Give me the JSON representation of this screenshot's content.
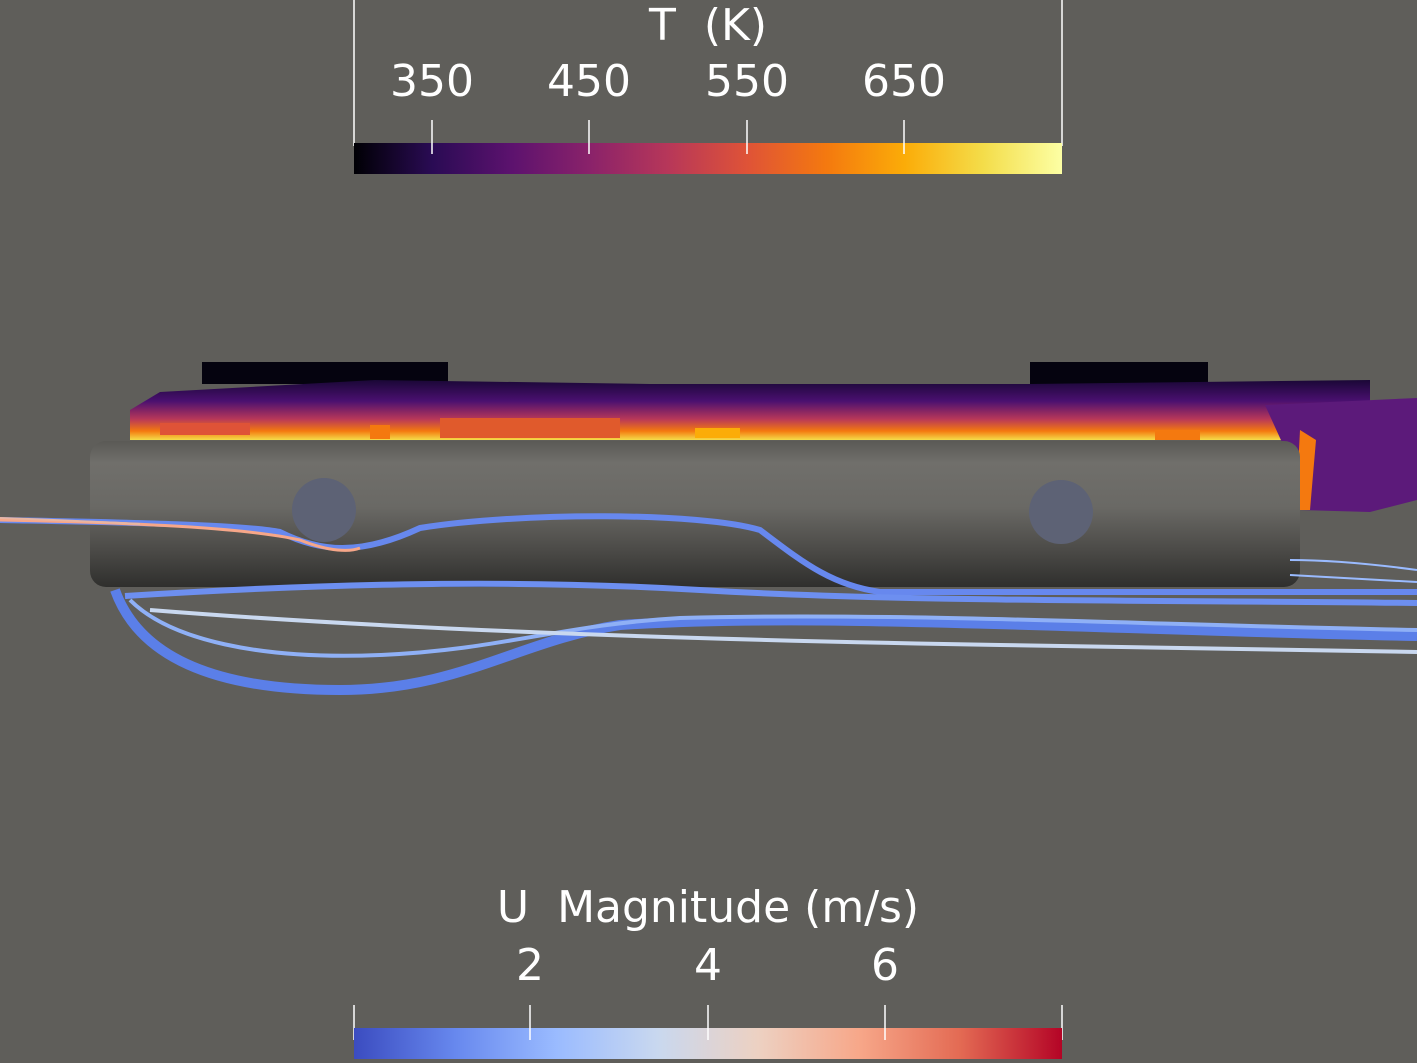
{
  "temperature_legend": {
    "title": "T  (K)",
    "ticks": [
      "350",
      "450",
      "550",
      "650"
    ],
    "stops": [
      "#000004",
      "#2a0b54",
      "#5c126e",
      "#8a226a",
      "#b73759",
      "#df5337",
      "#f4790f",
      "#fbac08",
      "#f4dd4a",
      "#fcffa4"
    ]
  },
  "velocity_legend": {
    "title": "U  Magnitude (m/s)",
    "ticks": [
      "2",
      "4",
      "6"
    ],
    "stops": [
      "#3b4cc0",
      "#6788ee",
      "#9abbff",
      "#c9d8ef",
      "#edd1c2",
      "#f7a789",
      "#e36a53",
      "#b40426"
    ]
  },
  "scene": {
    "background": "#5f5e5a",
    "cylinder_color": "#6d6c68",
    "streamline_color": "#5b7fe8",
    "hot_zone_color": "#f4790f"
  }
}
